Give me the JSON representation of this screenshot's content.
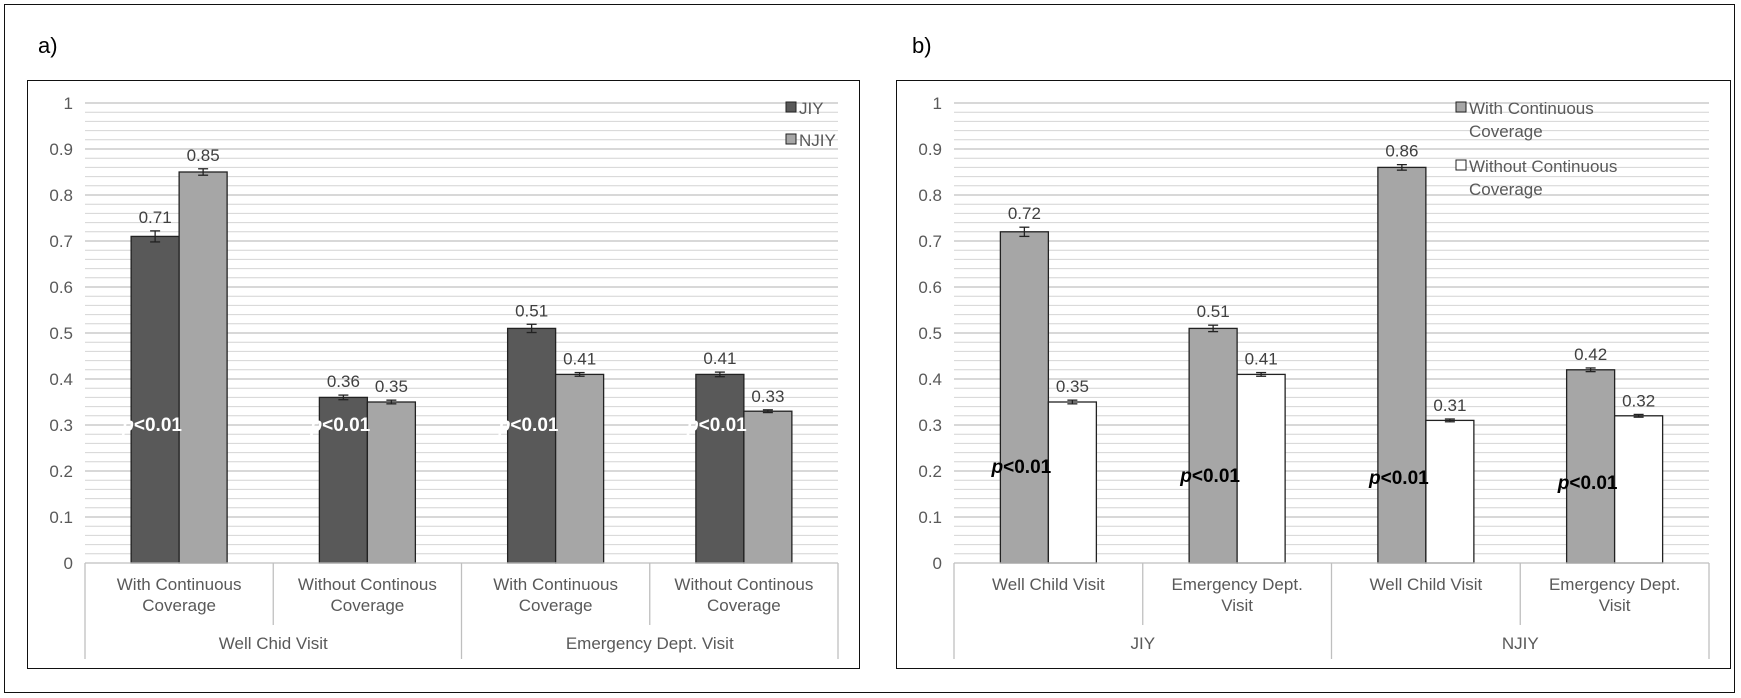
{
  "chart_data": [
    {
      "panel_label": "a)",
      "type": "bar",
      "ylim": [
        0,
        1
      ],
      "y_ticks": [
        "0",
        "0.1",
        "0.2",
        "0.3",
        "0.4",
        "0.5",
        "0.6",
        "0.7",
        "0.8",
        "0.9",
        "1"
      ],
      "grid": true,
      "legend_position": "top-right",
      "groups": [
        {
          "label": "Well Chid Visit",
          "categories": [
            "With Continuous Coverage",
            "Without Continous Coverage"
          ]
        },
        {
          "label": "Emergency Dept. Visit",
          "categories": [
            "With Continuous Coverage",
            "Without Continous Coverage"
          ]
        }
      ],
      "categories": [
        "With Continuous Coverage",
        "Without Continous Coverage",
        "With Continuous Coverage",
        "Without Continous Coverage"
      ],
      "series": [
        {
          "name": "JIY",
          "color": "#595959",
          "values": [
            0.71,
            0.36,
            0.51,
            0.41
          ],
          "labels": [
            "0.71",
            "0.36",
            "0.51",
            "0.41"
          ],
          "errors": [
            0.012,
            0.005,
            0.009,
            0.005
          ]
        },
        {
          "name": "NJIY",
          "color": "#a6a6a6",
          "values": [
            0.85,
            0.35,
            0.41,
            0.33
          ],
          "labels": [
            "0.85",
            "0.35",
            "0.41",
            "0.33"
          ],
          "errors": [
            0.007,
            0.004,
            0.004,
            0.003
          ]
        }
      ],
      "annotations": [
        "p<0.01",
        "p<0.01",
        "p<0.01",
        "p<0.01"
      ],
      "annotation_color": "#ffffff"
    },
    {
      "panel_label": "b)",
      "type": "bar",
      "ylim": [
        0,
        1
      ],
      "y_ticks": [
        "0",
        "0.1",
        "0.2",
        "0.3",
        "0.4",
        "0.5",
        "0.6",
        "0.7",
        "0.8",
        "0.9",
        "1"
      ],
      "grid": true,
      "legend_position": "top-right",
      "groups": [
        {
          "label": "JIY",
          "categories": [
            "Well Child Visit",
            "Emergency Dept. Visit"
          ]
        },
        {
          "label": "NJIY",
          "categories": [
            "Well Child Visit",
            "Emergency Dept. Visit"
          ]
        }
      ],
      "categories": [
        "Well Child Visit",
        "Emergency Dept. Visit",
        "Well Child Visit",
        "Emergency Dept. Visit"
      ],
      "series": [
        {
          "name": "With Continuous Coverage",
          "color": "#a6a6a6",
          "values": [
            0.72,
            0.51,
            0.86,
            0.42
          ],
          "labels": [
            "0.72",
            "0.51",
            "0.86",
            "0.42"
          ],
          "errors": [
            0.01,
            0.007,
            0.006,
            0.004
          ]
        },
        {
          "name": "Without Continuous Coverage",
          "color": "#ffffff",
          "values": [
            0.35,
            0.41,
            0.31,
            0.32
          ],
          "labels": [
            "0.35",
            "0.41",
            "0.31",
            "0.32"
          ],
          "errors": [
            0.004,
            0.004,
            0.003,
            0.003
          ]
        }
      ],
      "annotations": [
        "p<0.01",
        "p<0.01",
        "p<0.01",
        "p<0.01"
      ],
      "annotation_color": "#000000"
    }
  ]
}
